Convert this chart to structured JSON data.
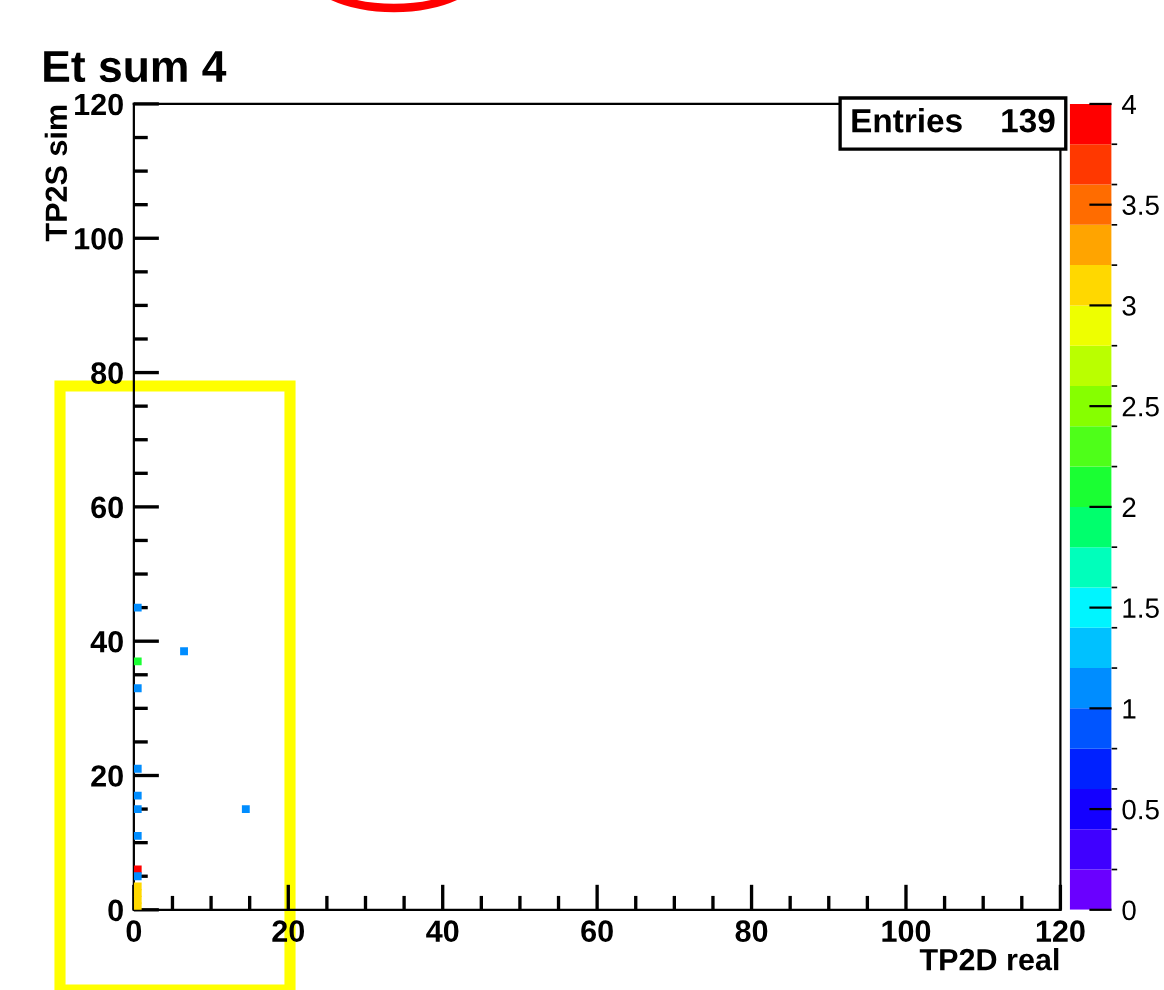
{
  "chart_data": {
    "type": "scatter",
    "title": "Et sum 4",
    "xlabel": "TP2D real",
    "ylabel": "TP2S sim",
    "annotations": [
      "Entries    139"
    ],
    "x": [
      0.5,
      0.5,
      0.5,
      0.5,
      0.5,
      0.5,
      0.5,
      0.5,
      0.5,
      0.5,
      0.5,
      0.5,
      0.5,
      6.5,
      14.5
    ],
    "values": [
      45,
      37,
      33,
      21,
      17,
      15,
      11,
      6,
      5,
      3.5,
      2.5,
      1.5,
      0.5,
      38.5,
      15
    ],
    "cvalues": [
      1,
      2,
      1,
      1,
      1,
      1,
      1,
      4,
      1,
      3,
      3,
      3,
      3,
      1,
      1
    ],
    "marker": "square",
    "xlim": [
      0,
      120
    ],
    "xticks": [
      0,
      20,
      40,
      60,
      80,
      100,
      120
    ],
    "ylim": [
      0,
      120
    ],
    "yticks": [
      0,
      20,
      40,
      60,
      80,
      100,
      120
    ],
    "clim": [
      0,
      4
    ],
    "cticks": [
      0,
      0.5,
      1,
      1.5,
      2,
      2.5,
      3,
      3.5,
      4
    ],
    "grid": false,
    "legend": false
  }
}
